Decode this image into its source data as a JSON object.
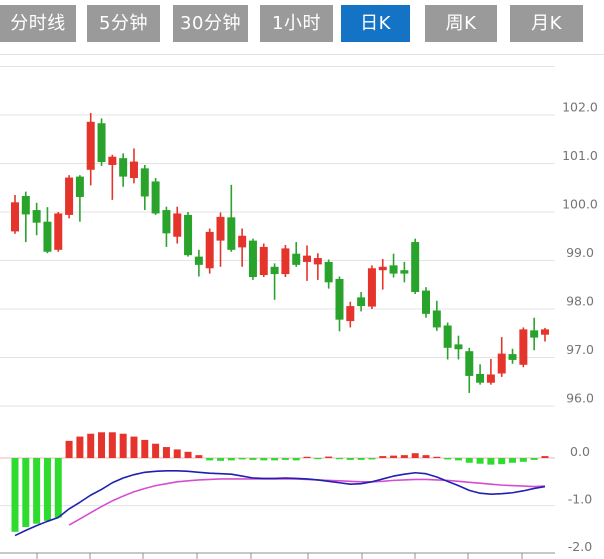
{
  "tabs": {
    "items": [
      {
        "label": "分时线",
        "active": false
      },
      {
        "label": "5分钟",
        "active": false
      },
      {
        "label": "30分钟",
        "active": false
      },
      {
        "label": "1小时",
        "active": false
      },
      {
        "label": "日K",
        "active": true
      },
      {
        "label": "周K",
        "active": false
      },
      {
        "label": "月K",
        "active": false
      }
    ]
  },
  "colors": {
    "tab_bg": "#9a9a9a",
    "tab_active": "#1473c5",
    "tab_text": "#ffffff",
    "candle_up": "#e5342b",
    "candle_down": "#2aa32d",
    "hist_up": "#e5342b",
    "hist_down": "#2edb2e",
    "dif_line": "#2020b0",
    "dea_line": "#d44fd0",
    "grid": "#e3e3e3",
    "axis": "#909090",
    "label": "#757575",
    "zero_line": "#edb8b8"
  },
  "chart_data": {
    "type": "candlestick",
    "title": "",
    "legend": [],
    "x_ticks": [
      37,
      90,
      143,
      197,
      251,
      308,
      362,
      415,
      468,
      522
    ],
    "main": {
      "ylabel_side": "right",
      "ylim": [
        96,
        103.2
      ],
      "gridlines": [
        103,
        102,
        101,
        100,
        99,
        98,
        97,
        96
      ],
      "labels": [
        [
          102,
          "102.0"
        ],
        [
          101,
          "101.0"
        ],
        [
          100,
          "100.0"
        ],
        [
          99,
          "99.0"
        ],
        [
          98,
          "98.0"
        ],
        [
          97,
          "97.0"
        ],
        [
          96,
          "96.0"
        ]
      ]
    },
    "candles": [
      [
        99.6,
        100.35,
        99.55,
        100.2
      ],
      [
        100.33,
        100.42,
        99.38,
        99.95
      ],
      [
        100.04,
        100.19,
        99.52,
        99.78
      ],
      [
        99.8,
        100.1,
        99.15,
        99.18
      ],
      [
        99.22,
        100.0,
        99.18,
        99.97
      ],
      [
        99.94,
        100.76,
        99.87,
        100.71
      ],
      [
        100.73,
        100.76,
        99.8,
        100.31
      ],
      [
        100.87,
        102.04,
        100.55,
        101.86
      ],
      [
        101.83,
        101.93,
        100.95,
        101.03
      ],
      [
        100.97,
        101.18,
        100.25,
        101.14
      ],
      [
        101.11,
        101.21,
        100.52,
        100.73
      ],
      [
        100.7,
        101.31,
        100.59,
        101.04
      ],
      [
        100.9,
        100.97,
        100.04,
        100.32
      ],
      [
        100.63,
        100.7,
        99.94,
        99.97
      ],
      [
        100.04,
        100.11,
        99.28,
        99.56
      ],
      [
        99.49,
        100.11,
        99.35,
        99.97
      ],
      [
        99.94,
        100.0,
        99.08,
        99.11
      ],
      [
        99.08,
        99.22,
        98.67,
        98.91
      ],
      [
        98.84,
        99.66,
        98.73,
        99.59
      ],
      [
        99.41,
        99.99,
        98.87,
        99.9
      ],
      [
        99.89,
        100.56,
        99.18,
        99.22
      ],
      [
        99.27,
        99.66,
        98.87,
        99.51
      ],
      [
        99.41,
        99.45,
        98.6,
        98.66
      ],
      [
        98.7,
        99.35,
        98.66,
        99.28
      ],
      [
        98.87,
        98.94,
        98.19,
        98.72
      ],
      [
        98.72,
        99.32,
        98.66,
        99.25
      ],
      [
        99.14,
        99.38,
        98.87,
        98.91
      ],
      [
        98.97,
        99.31,
        98.58,
        99.1
      ],
      [
        98.92,
        99.15,
        98.6,
        99.05
      ],
      [
        98.97,
        99.02,
        98.42,
        98.55
      ],
      [
        98.62,
        98.67,
        97.54,
        97.78
      ],
      [
        97.75,
        98.15,
        97.62,
        98.06
      ],
      [
        98.24,
        98.35,
        97.95,
        98.06
      ],
      [
        98.05,
        98.9,
        98.0,
        98.84
      ],
      [
        98.8,
        99.03,
        98.4,
        98.87
      ],
      [
        98.9,
        99.14,
        98.65,
        98.73
      ],
      [
        98.8,
        98.97,
        98.55,
        98.73
      ],
      [
        99.38,
        99.45,
        98.31,
        98.35
      ],
      [
        98.38,
        98.45,
        97.82,
        97.9
      ],
      [
        97.97,
        98.17,
        97.55,
        97.62
      ],
      [
        97.66,
        97.72,
        96.96,
        97.2
      ],
      [
        97.27,
        97.45,
        96.96,
        97.17
      ],
      [
        97.13,
        97.2,
        96.27,
        96.62
      ],
      [
        96.66,
        96.86,
        96.44,
        96.48
      ],
      [
        96.48,
        96.97,
        96.44,
        96.65
      ],
      [
        96.67,
        97.42,
        96.6,
        97.08
      ],
      [
        97.07,
        97.18,
        96.87,
        96.95
      ],
      [
        96.85,
        97.62,
        96.8,
        97.58
      ],
      [
        97.56,
        97.82,
        97.15,
        97.41
      ],
      [
        97.47,
        97.61,
        97.33,
        97.58
      ]
    ],
    "macd": {
      "ylim": [
        -2.1,
        0.6
      ],
      "gridlines": [
        -1
      ],
      "labels": [
        [
          0,
          "0.0"
        ],
        [
          -1,
          "-1.0"
        ],
        [
          -2,
          "-2.0"
        ]
      ],
      "histogram": [
        -1.55,
        -1.45,
        -1.38,
        -1.32,
        -1.25,
        0.36,
        0.45,
        0.51,
        0.54,
        0.54,
        0.51,
        0.45,
        0.38,
        0.3,
        0.23,
        0.18,
        0.13,
        0.06,
        -0.05,
        -0.06,
        -0.05,
        -0.03,
        -0.04,
        -0.05,
        -0.05,
        -0.04,
        -0.05,
        0.01,
        -0.01,
        0.03,
        -0.02,
        -0.04,
        -0.04,
        -0.03,
        0.04,
        0.05,
        0.06,
        0.1,
        0.06,
        0.02,
        -0.03,
        -0.05,
        -0.1,
        -0.12,
        -0.14,
        -0.13,
        -0.1,
        -0.08,
        -0.04,
        0.04
      ],
      "dif": [
        -1.63,
        -1.52,
        -1.42,
        -1.33,
        -1.25,
        -1.07,
        -0.93,
        -0.78,
        -0.66,
        -0.52,
        -0.42,
        -0.35,
        -0.3,
        -0.28,
        -0.27,
        -0.27,
        -0.28,
        -0.3,
        -0.32,
        -0.33,
        -0.34,
        -0.38,
        -0.42,
        -0.43,
        -0.43,
        -0.42,
        -0.43,
        -0.44,
        -0.46,
        -0.49,
        -0.52,
        -0.55,
        -0.54,
        -0.5,
        -0.44,
        -0.38,
        -0.34,
        -0.31,
        -0.33,
        -0.4,
        -0.49,
        -0.58,
        -0.68,
        -0.74,
        -0.76,
        -0.75,
        -0.73,
        -0.69,
        -0.64,
        -0.6
      ],
      "dea": [
        null,
        null,
        null,
        null,
        null,
        -1.41,
        -1.28,
        -1.15,
        -1.02,
        -0.9,
        -0.8,
        -0.71,
        -0.64,
        -0.58,
        -0.54,
        -0.5,
        -0.48,
        -0.46,
        -0.45,
        -0.44,
        -0.44,
        -0.44,
        -0.44,
        -0.44,
        -0.44,
        -0.44,
        -0.44,
        -0.45,
        -0.46,
        -0.47,
        -0.48,
        -0.49,
        -0.5,
        -0.5,
        -0.49,
        -0.47,
        -0.46,
        -0.45,
        -0.45,
        -0.46,
        -0.47,
        -0.49,
        -0.51,
        -0.53,
        -0.55,
        -0.57,
        -0.58,
        -0.59,
        -0.6,
        -0.59
      ]
    }
  }
}
